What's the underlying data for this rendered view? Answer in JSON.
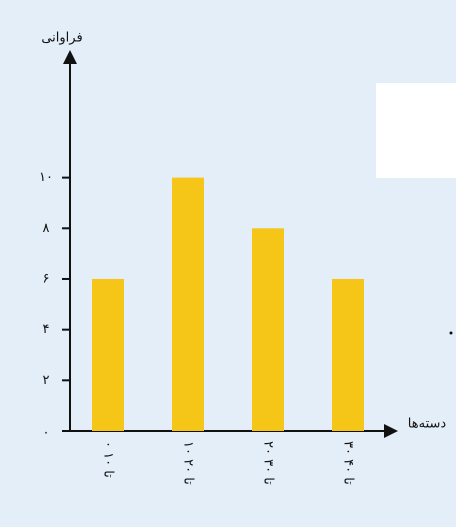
{
  "chart_data": {
    "type": "bar",
    "ylabel": "فراوانی",
    "xlabel": "دسته‌ها",
    "categories": [
      "۰ تا ۱۰",
      "۱۰ تا ۲۰",
      "۲۰ تا ۳۰",
      "۳۰ تا ۴۰"
    ],
    "values": [
      6,
      10,
      8,
      6
    ],
    "color": "#f5c518",
    "ylim": [
      0,
      14.8
    ],
    "yticks": [
      {
        "value": 0,
        "label": "۰"
      },
      {
        "value": 2,
        "label": "۲"
      },
      {
        "value": 4,
        "label": "۴"
      },
      {
        "value": 6,
        "label": "۶"
      },
      {
        "value": 8,
        "label": "۸"
      },
      {
        "value": 10,
        "label": "۱۰"
      }
    ]
  }
}
